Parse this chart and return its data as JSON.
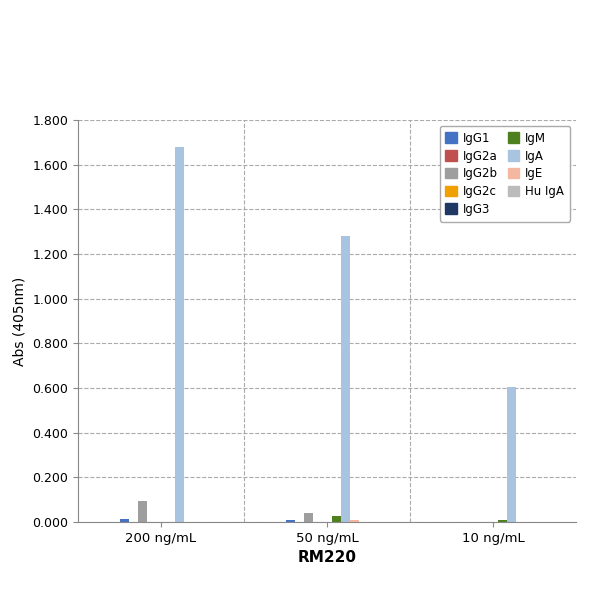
{
  "groups": [
    "200 ng/mL",
    "50 ng/mL",
    "10 ng/mL"
  ],
  "series": [
    {
      "label": "IgG1",
      "color": "#4472C4",
      "values": [
        0.015,
        0.008,
        0.0
      ]
    },
    {
      "label": "IgG2a",
      "color": "#C0504D",
      "values": [
        0.0,
        0.0,
        0.0
      ]
    },
    {
      "label": "IgG2b",
      "color": "#9E9E9E",
      "values": [
        0.095,
        0.042,
        0.0
      ]
    },
    {
      "label": "IgG2c",
      "color": "#F0A000",
      "values": [
        0.0,
        0.0,
        0.0
      ]
    },
    {
      "label": "IgG3",
      "color": "#1F3864",
      "values": [
        0.0,
        0.0,
        0.0
      ]
    },
    {
      "label": "IgM",
      "color": "#4E8020",
      "values": [
        0.0,
        0.028,
        0.008
      ]
    },
    {
      "label": "IgA",
      "color": "#A8C4E0",
      "values": [
        1.68,
        1.28,
        0.605
      ]
    },
    {
      "label": "IgE",
      "color": "#F4B8A0",
      "values": [
        0.0,
        0.01,
        0.0
      ]
    },
    {
      "label": "Hu IgA",
      "color": "#BBBBBB",
      "values": [
        0.0,
        0.0,
        0.0
      ]
    }
  ],
  "legend_order": [
    [
      "IgG1",
      "IgG2a"
    ],
    [
      "IgG2b",
      "IgG2c"
    ],
    [
      "IgG3",
      "IgM"
    ],
    [
      "IgA",
      "IgE"
    ],
    [
      "Hu IgA",
      null
    ]
  ],
  "ylabel": "Abs (405nm)",
  "xlabel": "RM220",
  "ylim": [
    0.0,
    1.8
  ],
  "yticks": [
    0.0,
    0.2,
    0.4,
    0.6,
    0.8,
    1.0,
    1.2,
    1.4,
    1.6,
    1.8
  ],
  "background_color": "#FFFFFF",
  "plot_background": "#FFFFFF",
  "outer_background": "#FFFFFF"
}
